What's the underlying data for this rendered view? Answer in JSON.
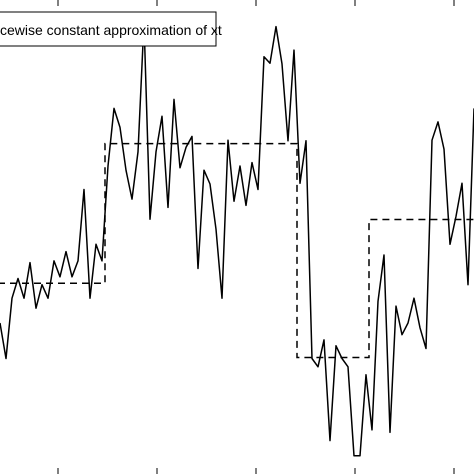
{
  "chart_data": {
    "type": "line",
    "title": "",
    "xlabel": "",
    "ylabel": "",
    "legend": {
      "placement": "top-left",
      "entries": [
        "cewise constant approximation of xt"
      ]
    },
    "grid": false,
    "x": [
      0,
      1,
      2,
      3,
      4,
      5,
      6,
      7,
      8,
      9,
      10,
      11,
      12,
      13,
      14,
      15,
      16,
      17,
      18,
      19,
      20,
      21,
      22,
      23,
      24,
      25,
      26,
      27,
      28,
      29,
      30,
      31,
      32,
      33,
      34,
      35,
      36,
      37,
      38,
      39,
      40,
      41,
      42,
      43,
      44,
      45,
      46,
      47,
      48,
      49,
      50,
      51,
      52,
      53,
      54,
      55,
      56,
      57,
      58,
      59,
      60,
      61,
      62,
      63,
      64,
      65,
      66,
      67,
      68,
      69,
      70,
      71,
      72,
      73,
      74,
      75,
      76,
      77,
      78,
      79
    ],
    "series": [
      {
        "style": "solid",
        "color": "#000000",
        "values": [
          0.0,
          -1.03,
          0.72,
          1.29,
          0.72,
          1.75,
          0.43,
          1.11,
          0.72,
          1.8,
          1.34,
          2.07,
          1.34,
          1.8,
          3.87,
          0.72,
          2.28,
          1.8,
          4.55,
          6.22,
          5.67,
          4.43,
          3.59,
          4.96,
          8.74,
          3.01,
          4.96,
          5.99,
          3.35,
          6.48,
          4.5,
          5.09,
          5.41,
          1.58,
          4.43,
          4.03,
          2.72,
          0.72,
          5.3,
          3.53,
          4.55,
          3.41,
          4.65,
          3.87,
          7.72,
          7.53,
          8.59,
          7.51,
          5.28,
          7.91,
          4.05,
          5.28,
          -1.03,
          -1.27,
          -0.49,
          -3.41,
          -0.66,
          -1.03,
          -1.27,
          -3.85,
          -3.85,
          -1.5,
          -3.1,
          0.63,
          1.97,
          -3.17,
          0.49,
          -0.34,
          0.0,
          0.72,
          -0.14,
          -0.74,
          5.3,
          5.83,
          5.04,
          2.28,
          3.09,
          4.05,
          1.11,
          6.22
        ]
      },
      {
        "style": "dashed",
        "color": "#000000",
        "values": [
          1.15,
          1.15,
          1.15,
          1.15,
          1.15,
          1.15,
          1.15,
          1.15,
          1.15,
          1.15,
          1.15,
          1.15,
          1.15,
          1.15,
          1.15,
          1.15,
          1.15,
          1.15,
          5.2,
          5.2,
          5.2,
          5.2,
          5.2,
          5.2,
          5.2,
          5.2,
          5.2,
          5.2,
          5.2,
          5.2,
          5.2,
          5.2,
          5.2,
          5.2,
          5.2,
          5.2,
          5.2,
          5.2,
          5.2,
          5.2,
          5.2,
          5.2,
          5.2,
          5.2,
          5.2,
          5.2,
          5.2,
          5.2,
          5.2,
          5.2,
          -1.0,
          -1.0,
          -1.0,
          -1.0,
          -1.0,
          -1.0,
          -1.0,
          -1.0,
          -1.0,
          -1.0,
          -1.0,
          -1.0,
          3.0,
          3.0,
          3.0,
          3.0,
          3.0,
          3.0,
          3.0,
          3.0,
          3.0,
          3.0,
          3.0,
          3.0,
          3.0,
          3.0,
          3.0,
          3.0,
          3.0,
          3.0
        ]
      }
    ]
  }
}
